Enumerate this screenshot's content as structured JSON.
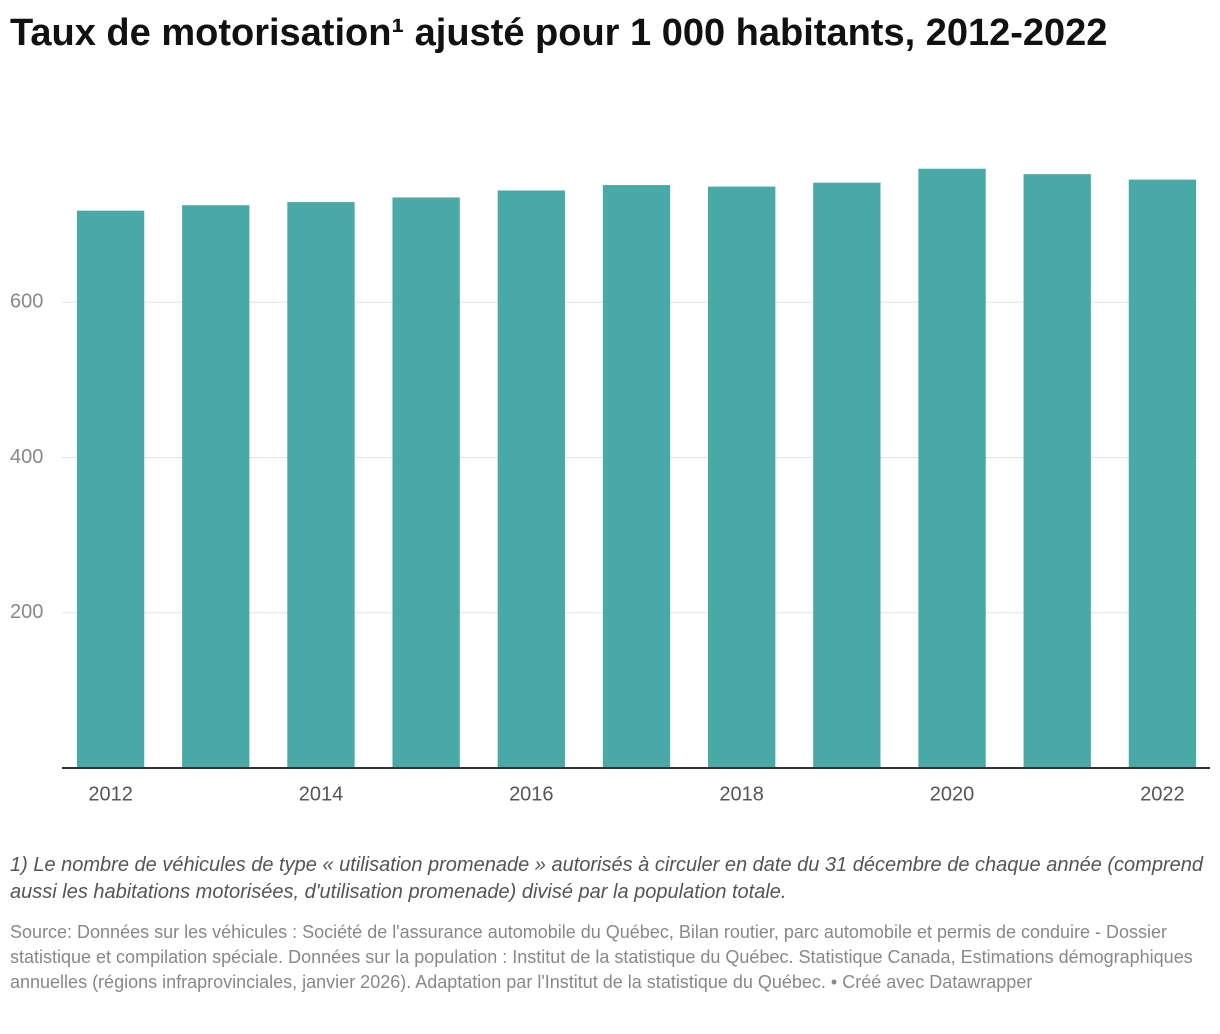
{
  "chart_data": {
    "type": "bar",
    "title": "Taux de motorisation¹ ajusté pour 1 000 habitants, 2012-2022",
    "categories": [
      "2012",
      null,
      "2014",
      null,
      "2016",
      null,
      "2018",
      null,
      "2020",
      null,
      "2022"
    ],
    "values": [
      718,
      725,
      729,
      735,
      744,
      751,
      749,
      754,
      772,
      765,
      758
    ],
    "color": "#49a9a6",
    "ylim": [
      0,
      800
    ],
    "yticks": [
      200,
      400,
      600
    ],
    "grid": true,
    "note": "1) Le nombre de véhicules de type « utilisation promenade » autorisés à circuler en date du 31 décembre de chaque année (comprend aussi les habitations motorisées, d'utilisation promenade) divisé par la population totale.",
    "source": "Source: Données sur les véhicules : Société de l'assurance automobile du Québec, Bilan routier, parc automobile et permis de conduire - Dossier statistique et compilation spéciale. Données sur la population : Institut de la statistique du Québec. Statistique Canada, Estimations démographiques annuelles (régions infraprovinciales, janvier 2026). Adaptation par l'Institut de la statistique du Québec. • Créé avec Datawrapper"
  }
}
